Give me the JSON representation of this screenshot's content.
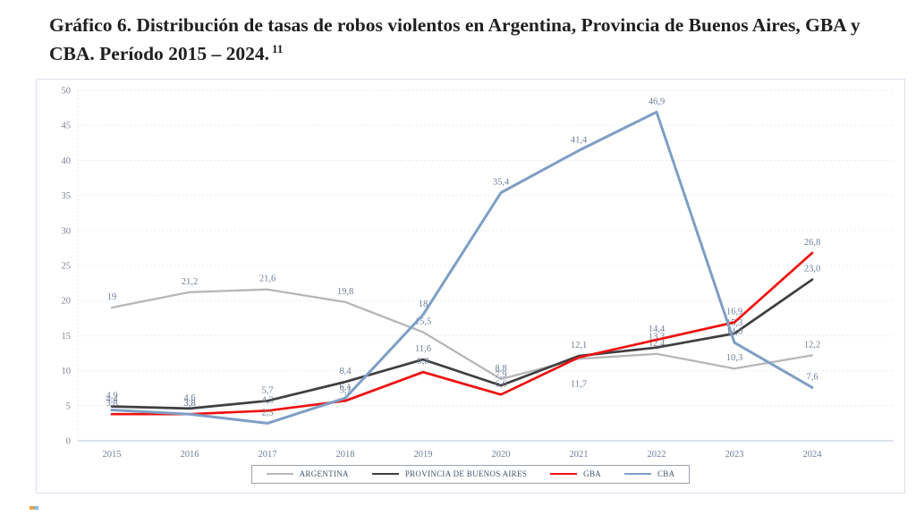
{
  "title": {
    "text": "Gráfico 6. Distribución de tasas de robos violentos en Argentina, Provincia de Buenos Aires, GBA y CBA. Período 2015 – 2024.",
    "footnote_ref": "11"
  },
  "chart_data": {
    "type": "line",
    "x": [
      "2015",
      "2016",
      "2017",
      "2018",
      "2019",
      "2020",
      "2021",
      "2022",
      "2023",
      "2024"
    ],
    "ylim": [
      0,
      50
    ],
    "yticks": [
      "0",
      "5",
      "10",
      "15",
      "20",
      "25",
      "30",
      "35",
      "40",
      "45",
      "50"
    ],
    "grid": "horizontal-dotted",
    "legend_position": "bottom-center",
    "title": "",
    "xlabel": "",
    "ylabel": "",
    "series": [
      {
        "name": "ARGENTINA",
        "color": "#b7b7b7",
        "values": [
          19,
          21.2,
          21.6,
          19.8,
          15.5,
          8.8,
          11.7,
          12.4,
          10.3,
          12.2
        ],
        "labels": [
          "19",
          "21,2",
          "21,6",
          "19,8",
          "15,5",
          "8,8",
          "11,7",
          "12,4",
          "10,3",
          "12,2"
        ]
      },
      {
        "name": "PROVINCIA DE BUENOS AIRES",
        "color": "#3f3f3f",
        "values": [
          4.9,
          4.6,
          5.7,
          8.4,
          11.6,
          7.9,
          12.1,
          13.3,
          15.3,
          23.0
        ],
        "labels": [
          "4,9",
          "4,6",
          "5,7",
          "8,4",
          "11,6",
          "7,9",
          "12,1",
          "13,3",
          "15,3",
          "23,0"
        ]
      },
      {
        "name": "GBA",
        "color": "#ee1111",
        "values": [
          3.8,
          3.8,
          4.3,
          5.7,
          9.8,
          6.6,
          11.9,
          14.4,
          16.9,
          26.8
        ],
        "labels": [
          "3,8",
          "3,8",
          "4,3",
          "5,7",
          "9,8",
          "6,6",
          "",
          "14,4",
          "16,9",
          "26,8"
        ]
      },
      {
        "name": "CBA",
        "color": "#7f9ec4",
        "values": [
          4.4,
          3.8,
          2.5,
          6.1,
          18,
          35.4,
          41.4,
          46.9,
          14.0,
          7.6
        ],
        "labels": [
          "4,4",
          "3,8",
          "2,5",
          "6,1",
          "18",
          "35,4",
          "41,4",
          "46,9",
          "14,0",
          "7,6"
        ]
      }
    ],
    "colors": {
      "gridline": "#dce6f2",
      "zero_axis": "#b9c6d8",
      "tick_text": "#7c828e",
      "data_label_text": "#6d7d97"
    }
  }
}
